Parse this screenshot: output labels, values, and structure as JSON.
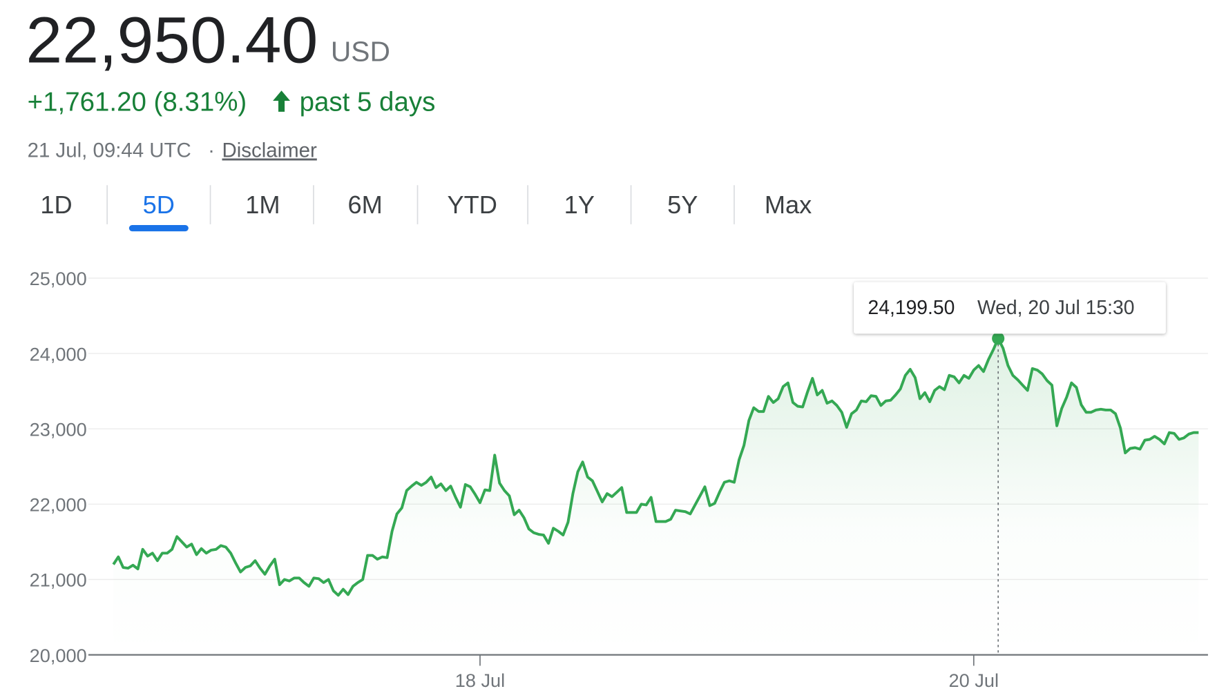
{
  "header": {
    "price": "22,950.40",
    "currency": "USD",
    "change": "+1,761.20 (8.31%)",
    "period": "past 5 days",
    "timestamp": "21 Jul, 09:44 UTC",
    "separator": "·",
    "disclaimer": "Disclaimer"
  },
  "tabs": {
    "items": [
      "1D",
      "5D",
      "1M",
      "6M",
      "YTD",
      "1Y",
      "5Y",
      "Max"
    ],
    "selected": "5D"
  },
  "chart_data": {
    "type": "line",
    "color": "#34a853",
    "categories": [
      null,
      null,
      null,
      null,
      null,
      null,
      null,
      null,
      null,
      null,
      null,
      null,
      null,
      null,
      null,
      null,
      null,
      null,
      null,
      null,
      null,
      null,
      null,
      null,
      null,
      null,
      null,
      null,
      null,
      null,
      null,
      null,
      null,
      null,
      null,
      null,
      null,
      null,
      null,
      null,
      null,
      null,
      null,
      null,
      null,
      null,
      null,
      null,
      null,
      null,
      null,
      null,
      null,
      null,
      null,
      null,
      null,
      null,
      null,
      null,
      null,
      null,
      null,
      null,
      null,
      null,
      null,
      null,
      null,
      null,
      null,
      null,
      null,
      null,
      null,
      "18 Jul",
      null,
      null,
      null,
      null,
      null,
      null,
      null,
      null,
      null,
      null,
      null,
      null,
      null,
      null,
      null,
      null,
      null,
      null,
      null,
      null,
      null,
      null,
      null,
      null,
      null,
      null,
      null,
      null,
      null,
      null,
      null,
      null,
      null,
      null,
      null,
      null,
      null,
      null,
      null,
      null,
      null,
      null,
      null,
      null,
      null,
      null,
      null,
      null,
      null,
      null,
      null,
      null,
      null,
      null,
      null,
      null,
      null,
      null,
      null,
      null,
      null,
      null,
      null,
      null,
      null,
      null,
      null,
      null,
      null,
      null,
      null,
      null,
      null,
      null,
      null,
      null,
      null,
      null,
      null,
      null,
      null,
      null,
      null,
      null,
      null,
      null,
      null,
      null,
      null,
      null,
      null,
      null,
      null,
      null,
      null,
      null,
      null,
      null,
      null,
      null,
      "20 Jul",
      null,
      null,
      null,
      null,
      null,
      null,
      null,
      null,
      null,
      null,
      null,
      null,
      null,
      null,
      null,
      null,
      null,
      null,
      null,
      null,
      null,
      null,
      null,
      null,
      null,
      null,
      null,
      null,
      null,
      null,
      null,
      null,
      null,
      null,
      null,
      null,
      null,
      null,
      null,
      null,
      null,
      null,
      null,
      null,
      null,
      null
    ],
    "values": [
      21200,
      21300,
      21160,
      21150,
      21190,
      21140,
      21400,
      21310,
      21350,
      21250,
      21350,
      21350,
      21400,
      21570,
      21500,
      21430,
      21470,
      21330,
      21410,
      21350,
      21390,
      21400,
      21450,
      21430,
      21350,
      21220,
      21100,
      21160,
      21180,
      21250,
      21150,
      21070,
      21180,
      21270,
      20930,
      21000,
      20980,
      21020,
      21020,
      20960,
      20910,
      21020,
      21010,
      20960,
      21000,
      20850,
      20790,
      20870,
      20800,
      20910,
      20960,
      21000,
      21320,
      21320,
      21270,
      21300,
      21290,
      21640,
      21870,
      21950,
      22180,
      22240,
      22290,
      22250,
      22290,
      22360,
      22220,
      22270,
      22180,
      22240,
      22090,
      21960,
      22260,
      22230,
      22130,
      22020,
      22190,
      22180,
      22650,
      22280,
      22180,
      22110,
      21860,
      21920,
      21820,
      21670,
      21620,
      21600,
      21590,
      21480,
      21680,
      21640,
      21590,
      21760,
      22140,
      22430,
      22560,
      22360,
      22310,
      22170,
      22030,
      22140,
      22100,
      22160,
      22220,
      21890,
      21890,
      21890,
      22000,
      21990,
      22090,
      21770,
      21770,
      21770,
      21800,
      21920,
      21910,
      21900,
      21870,
      21990,
      22110,
      22230,
      21980,
      22010,
      22160,
      22290,
      22310,
      22290,
      22590,
      22780,
      23110,
      23280,
      23230,
      23230,
      23430,
      23350,
      23400,
      23560,
      23610,
      23350,
      23300,
      23290,
      23490,
      23670,
      23450,
      23510,
      23340,
      23370,
      23310,
      23220,
      23020,
      23200,
      23250,
      23370,
      23360,
      23440,
      23430,
      23310,
      23370,
      23380,
      23450,
      23530,
      23710,
      23790,
      23680,
      23400,
      23480,
      23360,
      23510,
      23560,
      23520,
      23710,
      23690,
      23610,
      23710,
      23670,
      23780,
      23840,
      23760,
      23920,
      24050,
      24199.5,
      24070,
      23840,
      23710,
      23650,
      23580,
      23510,
      23800,
      23780,
      23730,
      23640,
      23580,
      23040,
      23270,
      23420,
      23610,
      23550,
      23320,
      23220,
      23220,
      23250,
      23260,
      23250,
      23250,
      23200,
      23010,
      22680,
      22740,
      22750,
      22730,
      22850,
      22860,
      22900,
      22860,
      22800,
      22950,
      22940,
      22860,
      22880,
      22930,
      22950,
      22950
    ],
    "ylim": [
      20000,
      25000
    ],
    "yticks": [
      {
        "value": 20000,
        "label": "20,000"
      },
      {
        "value": 21000,
        "label": "21,000"
      },
      {
        "value": 22000,
        "label": "22,000"
      },
      {
        "value": 23000,
        "label": "23,000"
      },
      {
        "value": 24000,
        "label": "24,000"
      },
      {
        "value": 25000,
        "label": "25,000"
      }
    ],
    "grid": true,
    "tooltip": {
      "value_label": "24,199.50",
      "time": "Wed, 20 Jul 15:30"
    }
  }
}
